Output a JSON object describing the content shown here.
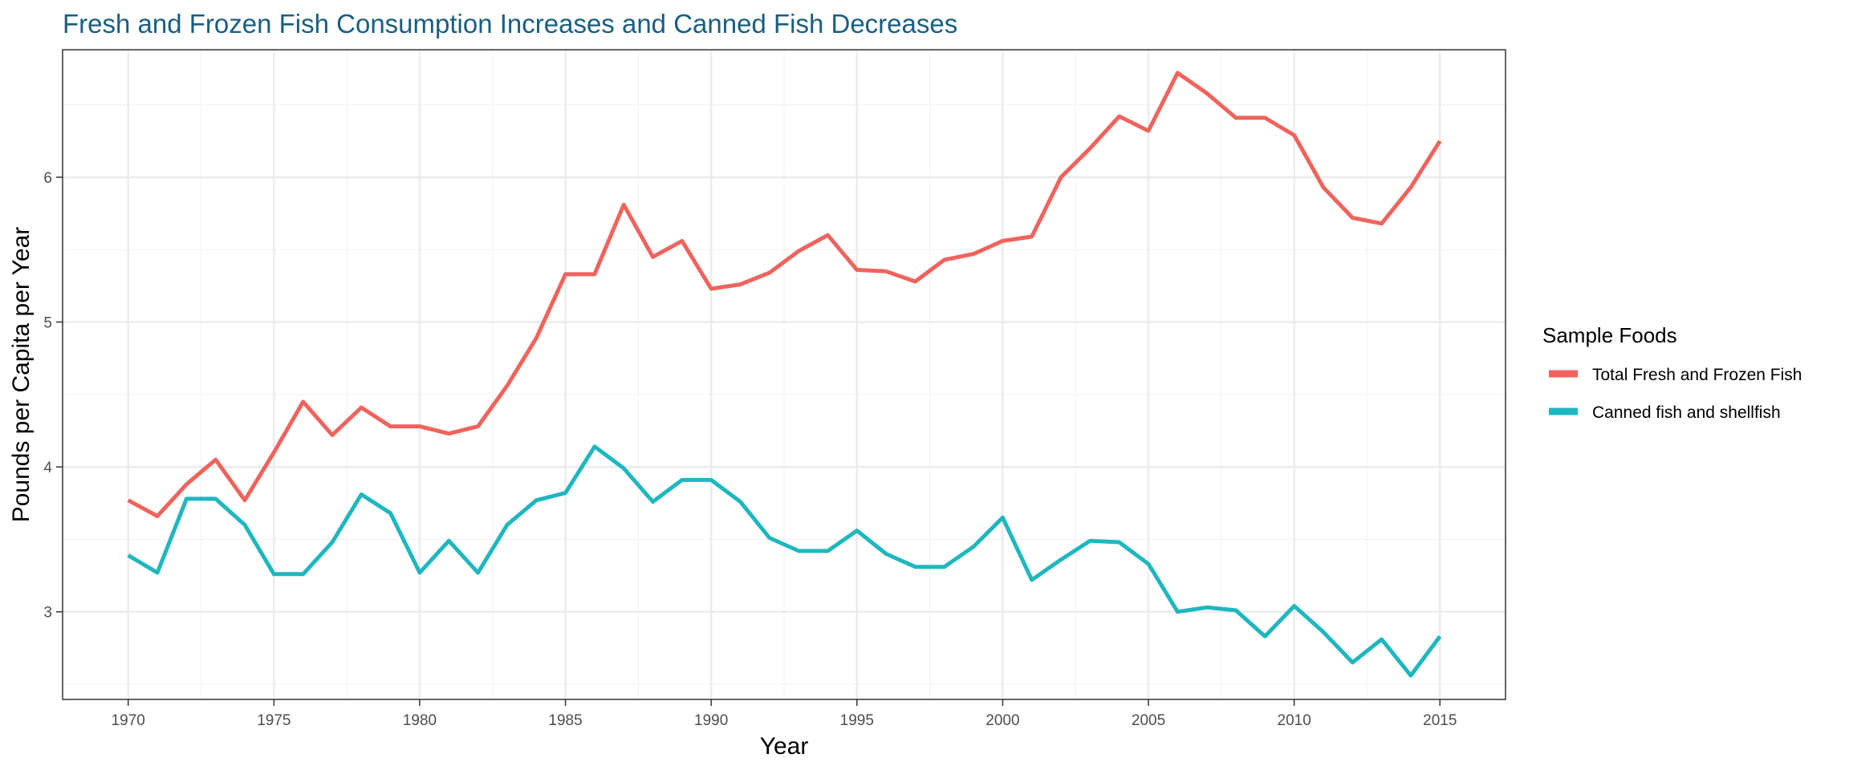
{
  "chart_data": {
    "type": "line",
    "title": "Fresh and Frozen Fish Consumption Increases and Canned Fish Decreases",
    "xlabel": "Year",
    "ylabel": "Pounds per Capita per Year",
    "xlim": [
      1967.75,
      2017.25
    ],
    "ylim": [
      2.395,
      6.88
    ],
    "x_ticks": [
      "1970",
      "1975",
      "1980",
      "1985",
      "1990",
      "1995",
      "2000",
      "2005",
      "2010",
      "2015"
    ],
    "y_ticks": [
      "3",
      "4",
      "5",
      "6"
    ],
    "grid": true,
    "legend": {
      "title": "Sample Foods",
      "position": "right"
    },
    "colors": {
      "title": "#1a5e80",
      "panel_border": "#333333",
      "grid_major": "#ebebeb",
      "grid_minor": "#f3f3f3"
    },
    "x": [
      1970,
      1971,
      1972,
      1973,
      1974,
      1975,
      1976,
      1977,
      1978,
      1979,
      1980,
      1981,
      1982,
      1983,
      1984,
      1985,
      1986,
      1987,
      1988,
      1989,
      1990,
      1991,
      1992,
      1993,
      1994,
      1995,
      1996,
      1997,
      1998,
      1999,
      2000,
      2001,
      2002,
      2003,
      2004,
      2005,
      2006,
      2007,
      2008,
      2009,
      2010,
      2011,
      2012,
      2013,
      2014,
      2015
    ],
    "series": [
      {
        "name": "Total Fresh and Frozen Fish",
        "color": "#f0635c",
        "values": [
          3.77,
          3.66,
          3.88,
          4.05,
          3.77,
          4.1,
          4.45,
          4.22,
          4.41,
          4.28,
          4.28,
          4.23,
          4.28,
          4.56,
          4.89,
          5.33,
          5.33,
          5.81,
          5.45,
          5.56,
          5.23,
          5.26,
          5.34,
          5.49,
          5.6,
          5.36,
          5.35,
          5.28,
          5.43,
          5.47,
          5.56,
          5.59,
          6.0,
          6.2,
          6.42,
          6.32,
          6.72,
          6.58,
          6.41,
          6.41,
          6.29,
          5.93,
          5.72,
          5.68,
          5.93,
          6.25
        ]
      },
      {
        "name": "Canned fish and shellfish",
        "color": "#1fb7bf",
        "values": [
          3.39,
          3.27,
          3.78,
          3.78,
          3.6,
          3.26,
          3.26,
          3.48,
          3.81,
          3.68,
          3.27,
          3.49,
          3.27,
          3.6,
          3.77,
          3.82,
          4.14,
          3.99,
          3.76,
          3.91,
          3.91,
          3.76,
          3.51,
          3.42,
          3.42,
          3.56,
          3.4,
          3.31,
          3.31,
          3.45,
          3.65,
          3.22,
          3.36,
          3.49,
          3.48,
          3.33,
          3.0,
          3.03,
          3.01,
          2.83,
          3.04,
          2.86,
          2.65,
          2.81,
          2.56,
          2.83
        ]
      }
    ]
  }
}
